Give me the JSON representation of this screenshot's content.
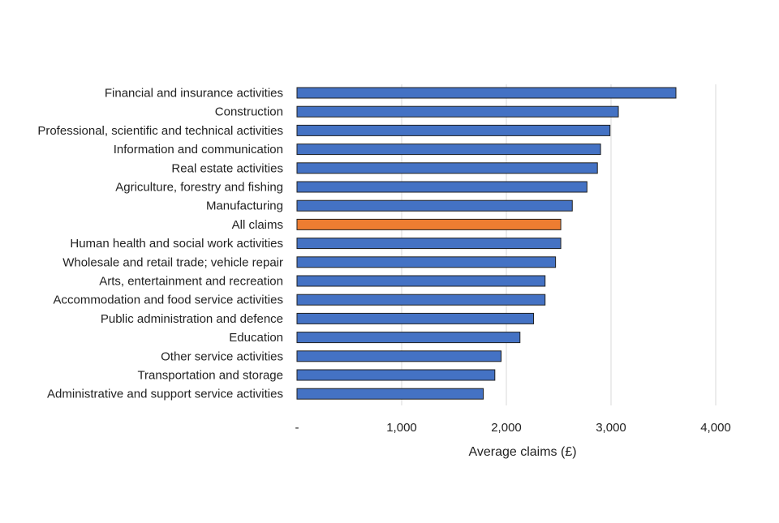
{
  "chart_data": {
    "type": "bar",
    "orientation": "horizontal",
    "title": "",
    "xlabel": "Average claims (£)",
    "ylabel": "",
    "xlim": [
      0,
      4000
    ],
    "grid": true,
    "legend": "none",
    "x_ticks": [
      0,
      1000,
      2000,
      3000,
      4000
    ],
    "x_tick_labels": [
      "-",
      "1,000",
      "2,000",
      "3,000",
      "4,000"
    ],
    "categories": [
      "Financial and insurance activities",
      "Construction",
      "Professional, scientific and technical activities",
      "Information and communication",
      "Real estate activities",
      "Agriculture, forestry and fishing",
      "Manufacturing",
      "All claims",
      "Human health and social work activities",
      "Wholesale and retail trade; vehicle repair",
      "Arts, entertainment and recreation",
      "Accommodation and food service activities",
      "Public administration and defence",
      "Education",
      "Other service activities",
      "Transportation and storage",
      "Administrative and support service activities"
    ],
    "values": [
      3620,
      3070,
      2990,
      2900,
      2870,
      2770,
      2630,
      2520,
      2520,
      2470,
      2370,
      2370,
      2260,
      2130,
      1950,
      1890,
      1780
    ],
    "colors": {
      "default": "#4472C4",
      "highlight": "#ED7D31",
      "highlight_category": "All claims"
    }
  }
}
